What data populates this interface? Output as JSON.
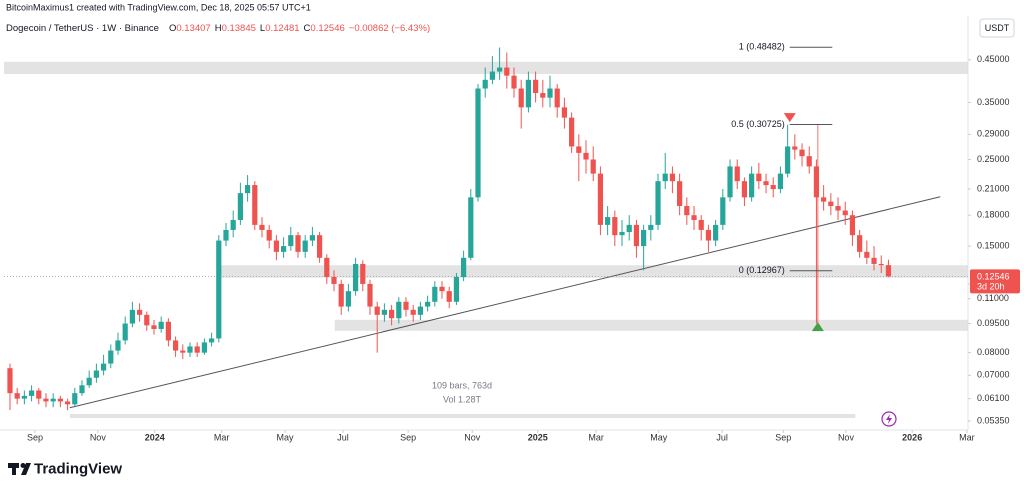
{
  "header": "BitcoinMaximus1 created with TradingView.com, Dec 18, 2025 05:57 UTC+1",
  "footer": "TradingView",
  "chart_data": {
    "type": "candlestick",
    "title": "Dogecoin / TetherUS · 1W · Binance",
    "ohlc_prefixes": [
      "O",
      "H",
      "L",
      "C"
    ],
    "change": "−0.00862 (−6.43%)",
    "currency": "USDT",
    "countdown": "3d 20h",
    "up_color": "#26a69a",
    "down_color": "#ef5350",
    "log_scale": true,
    "grid": false,
    "open": [
      0.073,
      0.063,
      0.061,
      0.062,
      0.064,
      0.061,
      0.06,
      0.061,
      0.06,
      0.059,
      0.063,
      0.066,
      0.069,
      0.072,
      0.075,
      0.081,
      0.086,
      0.095,
      0.103,
      0.1,
      0.094,
      0.092,
      0.096,
      0.086,
      0.081,
      0.08,
      0.083,
      0.08,
      0.085,
      0.087,
      0.155,
      0.165,
      0.175,
      0.205,
      0.215,
      0.17,
      0.165,
      0.155,
      0.145,
      0.15,
      0.16,
      0.145,
      0.155,
      0.16,
      0.14,
      0.125,
      0.12,
      0.105,
      0.115,
      0.135,
      0.12,
      0.105,
      0.1,
      0.103,
      0.098,
      0.108,
      0.103,
      0.1,
      0.105,
      0.108,
      0.118,
      0.115,
      0.108,
      0.125,
      0.14,
      0.2,
      0.38,
      0.4,
      0.42,
      0.43,
      0.41,
      0.38,
      0.34,
      0.4,
      0.37,
      0.36,
      0.38,
      0.34,
      0.32,
      0.27,
      0.26,
      0.25,
      0.23,
      0.17,
      0.178,
      0.16,
      0.163,
      0.17,
      0.15,
      0.165,
      0.17,
      0.22,
      0.23,
      0.22,
      0.19,
      0.18,
      0.175,
      0.165,
      0.155,
      0.17,
      0.2,
      0.24,
      0.22,
      0.2,
      0.23,
      0.22,
      0.215,
      0.21,
      0.23,
      0.27,
      0.265,
      0.255,
      0.24,
      0.2,
      0.195,
      0.19,
      0.185,
      0.18,
      0.16,
      0.145,
      0.14,
      0.135,
      0.13407
    ],
    "high": [
      0.075,
      0.065,
      0.064,
      0.066,
      0.065,
      0.063,
      0.063,
      0.062,
      0.061,
      0.065,
      0.068,
      0.072,
      0.075,
      0.079,
      0.084,
      0.09,
      0.099,
      0.108,
      0.107,
      0.102,
      0.097,
      0.099,
      0.098,
      0.088,
      0.084,
      0.085,
      0.085,
      0.087,
      0.09,
      0.16,
      0.172,
      0.185,
      0.218,
      0.228,
      0.22,
      0.178,
      0.17,
      0.16,
      0.158,
      0.168,
      0.163,
      0.16,
      0.168,
      0.163,
      0.143,
      0.13,
      0.123,
      0.12,
      0.14,
      0.138,
      0.123,
      0.108,
      0.107,
      0.106,
      0.111,
      0.111,
      0.106,
      0.108,
      0.112,
      0.122,
      0.122,
      0.118,
      0.128,
      0.146,
      0.21,
      0.39,
      0.43,
      0.46,
      0.484,
      0.47,
      0.43,
      0.4,
      0.42,
      0.42,
      0.4,
      0.41,
      0.39,
      0.36,
      0.33,
      0.29,
      0.28,
      0.27,
      0.24,
      0.19,
      0.185,
      0.175,
      0.18,
      0.175,
      0.17,
      0.18,
      0.23,
      0.26,
      0.24,
      0.23,
      0.2,
      0.19,
      0.18,
      0.17,
      0.175,
      0.21,
      0.25,
      0.25,
      0.225,
      0.24,
      0.245,
      0.23,
      0.225,
      0.24,
      0.307,
      0.29,
      0.275,
      0.27,
      0.25,
      0.215,
      0.205,
      0.2,
      0.195,
      0.185,
      0.165,
      0.155,
      0.15,
      0.142,
      0.13845
    ],
    "low": [
      0.057,
      0.059,
      0.059,
      0.06,
      0.059,
      0.058,
      0.058,
      0.058,
      0.057,
      0.058,
      0.062,
      0.065,
      0.067,
      0.07,
      0.073,
      0.079,
      0.084,
      0.093,
      0.096,
      0.091,
      0.089,
      0.09,
      0.083,
      0.078,
      0.077,
      0.078,
      0.078,
      0.079,
      0.083,
      0.085,
      0.15,
      0.158,
      0.17,
      0.195,
      0.165,
      0.158,
      0.148,
      0.138,
      0.14,
      0.146,
      0.14,
      0.14,
      0.15,
      0.136,
      0.12,
      0.115,
      0.1,
      0.102,
      0.112,
      0.115,
      0.1,
      0.08,
      0.096,
      0.094,
      0.095,
      0.099,
      0.096,
      0.097,
      0.102,
      0.105,
      0.11,
      0.104,
      0.106,
      0.122,
      0.138,
      0.195,
      0.36,
      0.39,
      0.4,
      0.38,
      0.36,
      0.3,
      0.33,
      0.35,
      0.34,
      0.34,
      0.32,
      0.3,
      0.26,
      0.22,
      0.23,
      0.22,
      0.16,
      0.16,
      0.15,
      0.15,
      0.155,
      0.14,
      0.13,
      0.155,
      0.165,
      0.21,
      0.205,
      0.18,
      0.17,
      0.165,
      0.155,
      0.145,
      0.15,
      0.165,
      0.195,
      0.21,
      0.19,
      0.195,
      0.21,
      0.205,
      0.2,
      0.205,
      0.225,
      0.25,
      0.24,
      0.23,
      0.095,
      0.185,
      0.18,
      0.175,
      0.17,
      0.15,
      0.14,
      0.135,
      0.13,
      0.128,
      0.12481
    ],
    "close": [
      0.063,
      0.061,
      0.062,
      0.064,
      0.061,
      0.06,
      0.061,
      0.06,
      0.059,
      0.063,
      0.066,
      0.069,
      0.072,
      0.075,
      0.081,
      0.086,
      0.095,
      0.103,
      0.1,
      0.094,
      0.092,
      0.096,
      0.086,
      0.081,
      0.08,
      0.083,
      0.08,
      0.085,
      0.087,
      0.155,
      0.165,
      0.175,
      0.205,
      0.215,
      0.17,
      0.165,
      0.155,
      0.145,
      0.15,
      0.16,
      0.145,
      0.155,
      0.16,
      0.14,
      0.125,
      0.12,
      0.105,
      0.115,
      0.135,
      0.12,
      0.105,
      0.1,
      0.103,
      0.098,
      0.108,
      0.103,
      0.1,
      0.105,
      0.108,
      0.118,
      0.115,
      0.108,
      0.125,
      0.14,
      0.2,
      0.38,
      0.4,
      0.42,
      0.43,
      0.41,
      0.38,
      0.34,
      0.4,
      0.37,
      0.36,
      0.38,
      0.34,
      0.32,
      0.27,
      0.26,
      0.25,
      0.23,
      0.17,
      0.178,
      0.16,
      0.163,
      0.17,
      0.15,
      0.165,
      0.17,
      0.22,
      0.23,
      0.22,
      0.19,
      0.18,
      0.175,
      0.165,
      0.155,
      0.17,
      0.2,
      0.24,
      0.22,
      0.2,
      0.23,
      0.22,
      0.215,
      0.21,
      0.23,
      0.27,
      0.265,
      0.255,
      0.24,
      0.2,
      0.195,
      0.19,
      0.185,
      0.18,
      0.16,
      0.145,
      0.14,
      0.135,
      0.13407,
      0.12546
    ],
    "xlim": [
      -0.83,
      133.05
    ],
    "xticks": [
      {
        "value": 3.47,
        "label": "Sep"
      },
      {
        "value": 12.2,
        "label": "Nov"
      },
      {
        "value": 20.1,
        "label": "2024"
      },
      {
        "value": 29.4,
        "label": "Mar"
      },
      {
        "value": 38.2,
        "label": "May"
      },
      {
        "value": 46.25,
        "label": "Jul"
      },
      {
        "value": 55.3,
        "label": "Sep"
      },
      {
        "value": 64.2,
        "label": "Nov"
      },
      {
        "value": 73.3,
        "label": "2025"
      },
      {
        "value": 81.4,
        "label": "Mar"
      },
      {
        "value": 90.1,
        "label": "May"
      },
      {
        "value": 98.9,
        "label": "Jul"
      },
      {
        "value": 107.4,
        "label": "Sep"
      },
      {
        "value": 116.1,
        "label": "Nov"
      },
      {
        "value": 125.3,
        "label": "2026"
      },
      {
        "value": 132.9,
        "label": "Mar"
      }
    ],
    "ylim": [
      0.0507,
      0.576
    ],
    "yticks": [
      {
        "value": 0.0535,
        "label": "0.05350"
      },
      {
        "value": 0.061,
        "label": "0.06100"
      },
      {
        "value": 0.07,
        "label": "0.07000"
      },
      {
        "value": 0.08,
        "label": "0.08000"
      },
      {
        "value": 0.095,
        "label": "0.09500"
      },
      {
        "value": 0.11,
        "label": "0.11000"
      },
      {
        "value": 0.12,
        "label": "0.12000"
      },
      {
        "value": 0.15,
        "label": "0.15000"
      },
      {
        "value": 0.18,
        "label": "0.18000"
      },
      {
        "value": 0.21,
        "label": "0.21000"
      },
      {
        "value": 0.25,
        "label": "0.25000"
      },
      {
        "value": 0.29,
        "label": "0.29000"
      },
      {
        "value": 0.35,
        "label": "0.35000"
      },
      {
        "value": 0.45,
        "label": "0.45000"
      }
    ],
    "zones": [
      {
        "low": 0.414,
        "high": 0.445,
        "from": -0.83
      },
      {
        "low": 0.1245,
        "high": 0.134,
        "from": 28.9
      },
      {
        "low": 0.091,
        "high": 0.0971,
        "from": 45.1
      }
    ],
    "trendline": {
      "x": [
        8.3,
        129.2
      ],
      "y": [
        0.0578,
        0.2007
      ]
    },
    "fib_x": [
      108.3,
      114.2
    ],
    "fib_levels": [
      {
        "value": 0.48482,
        "label": "1 (0.48482)"
      },
      {
        "value": 0.30725,
        "label": "0.5 (0.30725)"
      },
      {
        "value": 0.12967,
        "label": "0 (0.12967)"
      }
    ],
    "measure": {
      "x": 112.2,
      "y": [
        0.30725,
        0.095
      ]
    },
    "arrows": [
      {
        "x": 108.3,
        "y": 0.321,
        "direction": "down",
        "color": "#ef5350"
      },
      {
        "x": 112.2,
        "y": 0.093,
        "direction": "up",
        "color": "#43a047"
      }
    ],
    "stats": [
      "109 bars, 763d",
      "Vol 1.28T"
    ],
    "stats_range": [
      8.3,
      117.4
    ]
  }
}
